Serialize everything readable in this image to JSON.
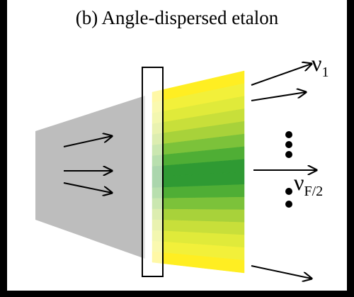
{
  "title": "(b) Angle-dispersed etalon",
  "labels": [
    {
      "main": "ν",
      "sub": "1"
    },
    {
      "main": "ν",
      "sub": "F/2"
    }
  ]
}
